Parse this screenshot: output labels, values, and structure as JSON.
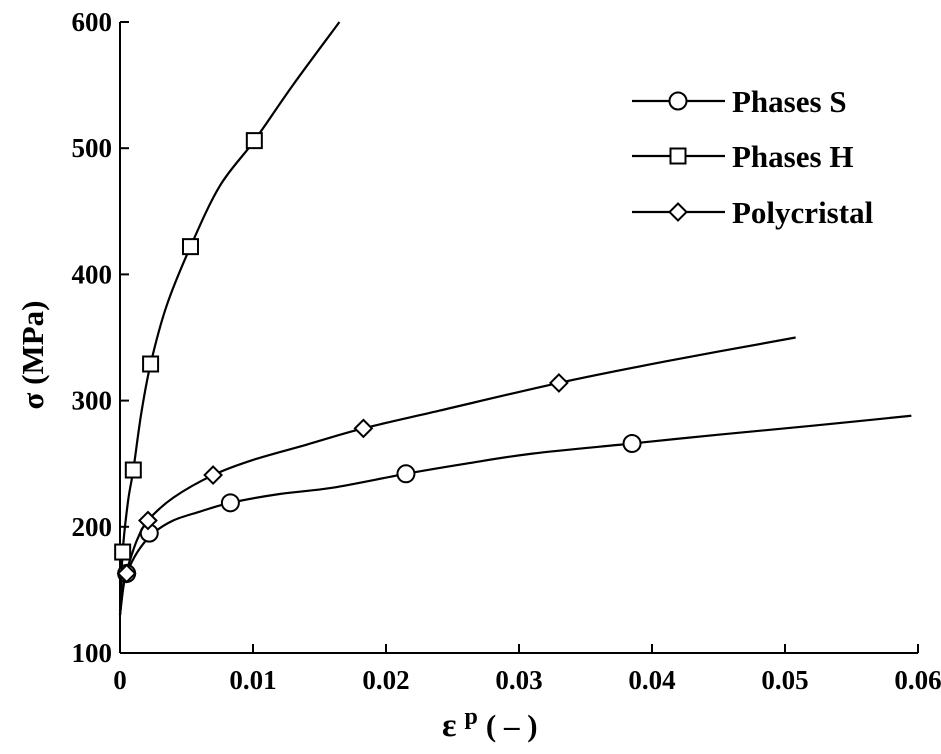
{
  "chart_data": {
    "type": "line",
    "title": "",
    "xlabel": "ε",
    "xlabel_superscript": "p",
    "xlabel_unit": "( – )",
    "ylabel": "σ (MPa)",
    "xlim": [
      0,
      0.06
    ],
    "ylim": [
      100,
      600
    ],
    "x_ticks": [
      0,
      0.01,
      0.02,
      0.03,
      0.04,
      0.05,
      0.06
    ],
    "x_tick_labels": [
      "0",
      "0.01",
      "0.02",
      "0.03",
      "0.04",
      "0.05",
      "0.06"
    ],
    "y_ticks": [
      100,
      200,
      300,
      400,
      500,
      600
    ],
    "y_tick_labels": [
      "100",
      "200",
      "300",
      "400",
      "500",
      "600"
    ],
    "grid": false,
    "legend_position": "top-right",
    "series": [
      {
        "name": "Phases S",
        "marker": "circle",
        "curve": [
          [
            0,
            130
          ],
          [
            0.0003,
            155
          ],
          [
            0.0007,
            168
          ],
          [
            0.0015,
            183
          ],
          [
            0.0025,
            195
          ],
          [
            0.004,
            205
          ],
          [
            0.006,
            212
          ],
          [
            0.0083,
            219
          ],
          [
            0.012,
            226
          ],
          [
            0.016,
            231
          ],
          [
            0.0215,
            242
          ],
          [
            0.026,
            250
          ],
          [
            0.031,
            258
          ],
          [
            0.0385,
            266
          ],
          [
            0.045,
            273
          ],
          [
            0.052,
            280
          ],
          [
            0.0595,
            288
          ]
        ],
        "markers": [
          [
            0.0005,
            163
          ],
          [
            0.0022,
            195
          ],
          [
            0.0083,
            219
          ],
          [
            0.0215,
            242
          ],
          [
            0.0385,
            266
          ]
        ]
      },
      {
        "name": "Phases H",
        "marker": "square",
        "curve": [
          [
            0,
            130
          ],
          [
            0.0002,
            180
          ],
          [
            0.0006,
            220
          ],
          [
            0.001,
            245
          ],
          [
            0.0016,
            290
          ],
          [
            0.0023,
            329
          ],
          [
            0.0035,
            375
          ],
          [
            0.0053,
            422
          ],
          [
            0.0075,
            470
          ],
          [
            0.0101,
            506
          ],
          [
            0.013,
            550
          ],
          [
            0.0165,
            600
          ]
        ],
        "markers": [
          [
            0.0002,
            180
          ],
          [
            0.001,
            245
          ],
          [
            0.0023,
            329
          ],
          [
            0.0053,
            422
          ],
          [
            0.0101,
            506
          ]
        ]
      },
      {
        "name": "Polycristal",
        "marker": "diamond",
        "curve": [
          [
            0,
            130
          ],
          [
            0.0003,
            158
          ],
          [
            0.0007,
            172
          ],
          [
            0.0013,
            190
          ],
          [
            0.0021,
            205
          ],
          [
            0.004,
            223
          ],
          [
            0.007,
            241
          ],
          [
            0.01,
            253
          ],
          [
            0.014,
            265
          ],
          [
            0.0183,
            278
          ],
          [
            0.024,
            292
          ],
          [
            0.033,
            314
          ],
          [
            0.041,
            331
          ],
          [
            0.0508,
            350
          ]
        ],
        "markers": [
          [
            0.0005,
            163
          ],
          [
            0.0021,
            205
          ],
          [
            0.007,
            241
          ],
          [
            0.0183,
            278
          ],
          [
            0.033,
            314
          ]
        ]
      }
    ]
  }
}
